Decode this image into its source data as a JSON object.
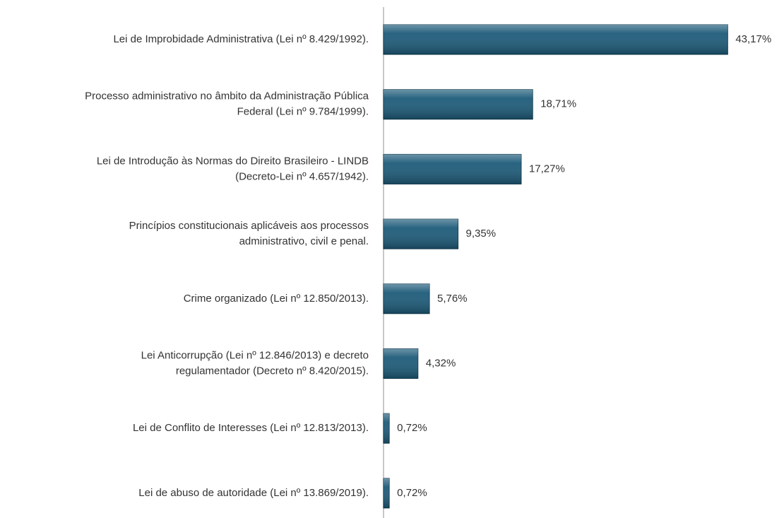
{
  "chart_data": {
    "type": "bar",
    "orientation": "horizontal",
    "categories": [
      [
        "Lei de Improbidade Administrativa (Lei nº 8.429/1992)."
      ],
      [
        "Processo administrativo no âmbito da Administração Pública",
        "Federal (Lei nº 9.784/1999)."
      ],
      [
        "Lei de Introdução às Normas do Direito Brasileiro - LINDB",
        "(Decreto-Lei nº 4.657/1942)."
      ],
      [
        "Princípios constitucionais aplicáveis aos processos",
        "administrativo, civil e penal."
      ],
      [
        "Crime organizado (Lei nº 12.850/2013)."
      ],
      [
        "Lei Anticorrupção (Lei nº 12.846/2013) e decreto",
        "regulamentador (Decreto nº 8.420/2015)."
      ],
      [
        "Lei de Conflito de Interesses (Lei nº 12.813/2013)."
      ],
      [
        "Lei de abuso de autoridade (Lei nº 13.869/2019)."
      ]
    ],
    "values": [
      43.17,
      18.71,
      17.27,
      9.35,
      5.76,
      4.32,
      0.72,
      0.72
    ],
    "value_labels": [
      "43,17%",
      "18,71%",
      "17,27%",
      "9,35%",
      "5,76%",
      "4,32%",
      "0,72%",
      "0,72%"
    ],
    "color": "#1d5b79",
    "xlim": [
      0,
      45
    ]
  }
}
